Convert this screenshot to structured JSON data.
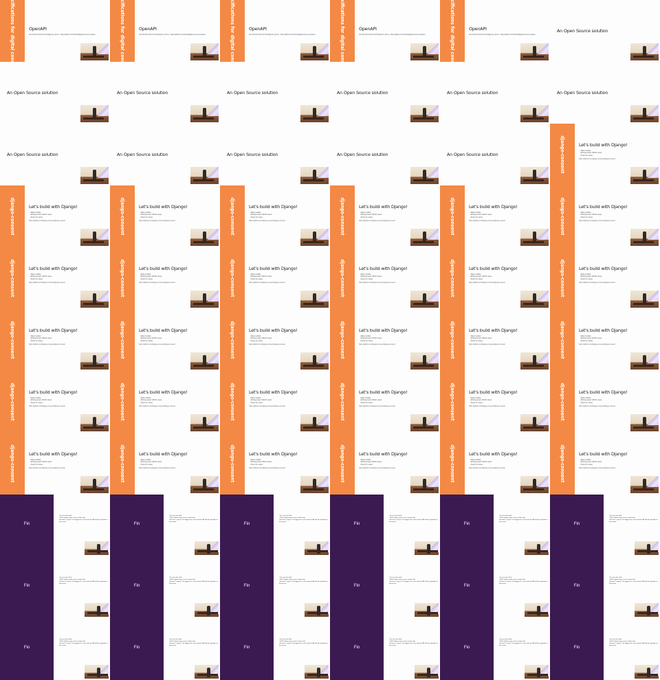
{
  "layout": {
    "columns": 6
  },
  "frames": [
    {
      "type": "openapi",
      "side": "Specifications for digital consent",
      "title": "OpenAPI",
      "subtitle": "Jan Ohnoli's fork/c2.0 (f0 Re@ Ant_90.4) · https://github.com/ohnoli/digital-consent-cultures"
    },
    {
      "type": "openapi",
      "side": "Specifications for digital consent",
      "title": "OpenAPI",
      "subtitle": "Jan Ohnoli's fork/c2.0 (f0 Re@ Ant_90.4) · https://github.com/ohnoli/digital-consent-cultures"
    },
    {
      "type": "openapi",
      "side": "Specifications for digital consent",
      "title": "OpenAPI",
      "subtitle": "Jan Ohnoli's fork/c2.0 (f0 Re@ Ant_90.4) · https://github.com/ohnoli/digital-consent-cultures"
    },
    {
      "type": "openapi",
      "side": "Specifications for digital consent",
      "title": "OpenAPI",
      "subtitle": "Jan Ohnoli's fork/c2.0 (f0 Re@ Ant_90.4) · https://github.com/ohnoli/digital-consent-cultures"
    },
    {
      "type": "openapi",
      "side": "Specifications for digital consent",
      "title": "OpenAPI",
      "subtitle": "Jan Ohnoli's fork/c2.0 (f0 Re@ Ant_90.4) · https://github.com/ohnoli/digital-consent-cultures"
    },
    {
      "type": "plain",
      "title": "An Open Source solution"
    },
    {
      "type": "plain",
      "title": "An Open Source solution"
    },
    {
      "type": "plain",
      "title": "An Open Source solution"
    },
    {
      "type": "plain",
      "title": "An Open Source solution"
    },
    {
      "type": "plain",
      "title": "An Open Source solution"
    },
    {
      "type": "plain",
      "title": "An Open Source solution"
    },
    {
      "type": "plain",
      "title": "An Open Source solution"
    },
    {
      "type": "plain",
      "title": "An Open Source solution"
    },
    {
      "type": "plain",
      "title": "An Open Source solution"
    },
    {
      "type": "plain",
      "title": "An Open Source solution"
    },
    {
      "type": "plain",
      "title": "An Open Source solution"
    },
    {
      "type": "plain",
      "title": "An Open Source solution"
    },
    {
      "type": "django",
      "side": "django-consent",
      "title": "Let's build with Django!",
      "bullets": [
        "Data models",
        "Writing basic CRUD views",
        "Tests for views"
      ],
      "link": "https://github.com/django-consent/django-consent"
    },
    {
      "type": "django",
      "side": "django-consent",
      "title": "Let's build with Django!",
      "bullets": [
        "Data models",
        "Writing basic CRUD views",
        "Tests for views"
      ],
      "link": "https://github.com/django-consent/django-consent"
    },
    {
      "type": "django",
      "side": "django-consent",
      "title": "Let's build with Django!",
      "bullets": [
        "Data models",
        "Writing basic CRUD views",
        "Tests for views"
      ],
      "link": "https://github.com/django-consent/django-consent"
    },
    {
      "type": "django",
      "side": "django-consent",
      "title": "Let's build with Django!",
      "bullets": [
        "Data models",
        "Writing basic CRUD views",
        "Tests for views"
      ],
      "link": "https://github.com/django-consent/django-consent"
    },
    {
      "type": "django",
      "side": "django-consent",
      "title": "Let's build with Django!",
      "bullets": [
        "Data models",
        "Writing basic CRUD views",
        "Tests for views"
      ],
      "link": "https://github.com/django-consent/django-consent"
    },
    {
      "type": "django",
      "side": "django-consent",
      "title": "Let's build with Django!",
      "bullets": [
        "Data models",
        "Writing basic CRUD views",
        "Tests for views"
      ],
      "link": "https://github.com/django-consent/django-consent"
    },
    {
      "type": "django",
      "side": "django-consent",
      "title": "Let's build with Django!",
      "bullets": [
        "Data models",
        "Writing basic CRUD views",
        "Tests for views"
      ],
      "link": "https://github.com/django-consent/django-consent"
    },
    {
      "type": "django",
      "side": "django-consent",
      "title": "Let's build with Django!",
      "bullets": [
        "Data models",
        "Writing basic CRUD views",
        "Tests for views"
      ],
      "link": "https://github.com/django-consent/django-consent"
    },
    {
      "type": "django",
      "side": "django-consent",
      "title": "Let's build with Django!",
      "bullets": [
        "Data models",
        "Writing basic CRUD views",
        "Tests for views"
      ],
      "link": "https://github.com/django-consent/django-consent"
    },
    {
      "type": "django",
      "side": "django-consent",
      "title": "Let's build with Django!",
      "bullets": [
        "Data models",
        "Writing basic CRUD views",
        "Tests for views"
      ],
      "link": "https://github.com/django-consent/django-consent"
    },
    {
      "type": "django",
      "side": "django-consent",
      "title": "Let's build with Django!",
      "bullets": [
        "Data models",
        "Writing basic CRUD views",
        "Tests for views"
      ],
      "link": "https://github.com/django-consent/django-consent"
    },
    {
      "type": "django",
      "side": "django-consent",
      "title": "Let's build with Django!",
      "bullets": [
        "Data models",
        "Writing basic CRUD views",
        "Tests for views"
      ],
      "link": "https://github.com/django-consent/django-consent"
    },
    {
      "type": "django",
      "side": "django-consent",
      "title": "Let's build with Django!",
      "bullets": [
        "Data models",
        "Writing basic CRUD views",
        "Tests for views"
      ],
      "link": "https://github.com/django-consent/django-consent"
    },
    {
      "type": "django",
      "side": "django-consent",
      "title": "Let's build with Django!",
      "bullets": [
        "Data models",
        "Writing basic CRUD views",
        "Tests for views"
      ],
      "link": "https://github.com/django-consent/django-consent"
    },
    {
      "type": "django",
      "side": "django-consent",
      "title": "Let's build with Django!",
      "bullets": [
        "Data models",
        "Writing basic CRUD views",
        "Tests for views"
      ],
      "link": "https://github.com/django-consent/django-consent"
    },
    {
      "type": "django",
      "side": "django-consent",
      "title": "Let's build with Django!",
      "bullets": [
        "Data models",
        "Writing basic CRUD views",
        "Tests for views"
      ],
      "link": "https://github.com/django-consent/django-consent"
    },
    {
      "type": "django",
      "side": "django-consent",
      "title": "Let's build with Django!",
      "bullets": [
        "Data models",
        "Writing basic CRUD views",
        "Tests for views"
      ],
      "link": "https://github.com/django-consent/django-consent"
    },
    {
      "type": "django",
      "side": "django-consent",
      "title": "Let's build with Django!",
      "bullets": [
        "Data models",
        "Writing basic CRUD views",
        "Tests for views"
      ],
      "link": "https://github.com/django-consent/django-consent"
    },
    {
      "type": "django",
      "side": "django-consent",
      "title": "Let's build with Django!",
      "bullets": [
        "Data models",
        "Writing basic CRUD views",
        "Tests for views"
      ],
      "link": "https://github.com/django-consent/django-consent"
    },
    {
      "type": "django",
      "side": "django-consent",
      "title": "Let's build with Django!",
      "bullets": [
        "Data models",
        "Writing basic CRUD views",
        "Tests for views"
      ],
      "link": "https://github.com/django-consent/django-consent"
    },
    {
      "type": "django",
      "side": "django-consent",
      "title": "Let's build with Django!",
      "bullets": [
        "Data models",
        "Writing basic CRUD views",
        "Tests for views"
      ],
      "link": "https://github.com/django-consent/django-consent"
    },
    {
      "type": "django",
      "side": "django-consent",
      "title": "Let's build with Django!",
      "bullets": [
        "Data models",
        "Writing basic CRUD views",
        "Tests for views"
      ],
      "link": "https://github.com/django-consent/django-consent"
    },
    {
      "type": "django",
      "side": "django-consent",
      "title": "Let's build with Django!",
      "bullets": [
        "Data models",
        "Writing basic CRUD views",
        "Tests for views"
      ],
      "link": "https://github.com/django-consent/django-consent"
    },
    {
      "type": "django",
      "side": "django-consent",
      "title": "Let's build with Django!",
      "bullets": [
        "Data models",
        "Writing basic CRUD views",
        "Tests for views"
      ],
      "link": "https://github.com/django-consent/django-consent"
    },
    {
      "type": "django",
      "side": "django-consent",
      "title": "Let's build with Django!",
      "bullets": [
        "Data models",
        "Writing basic CRUD views",
        "Tests for views"
      ],
      "link": "https://github.com/django-consent/django-consent"
    },
    {
      "type": "django",
      "side": "django-consent",
      "title": "Let's build with Django!",
      "bullets": [
        "Data models",
        "Writing basic CRUD views",
        "Tests for views"
      ],
      "link": "https://github.com/django-consent/django-consent"
    },
    {
      "type": "django",
      "side": "django-consent",
      "title": "Let's build with Django!",
      "bullets": [
        "Data models",
        "Writing basic CRUD views",
        "Tests for views"
      ],
      "link": "https://github.com/django-consent/django-consent"
    },
    {
      "type": "django",
      "side": "django-consent",
      "title": "Let's build with Django!",
      "bullets": [
        "Data models",
        "Writing basic CRUD views",
        "Tests for views"
      ],
      "link": "https://github.com/django-consent/django-consent"
    },
    {
      "type": "django",
      "side": "django-consent",
      "title": "Let's build with Django!",
      "bullets": [
        "Data models",
        "Writing basic CRUD views",
        "Tests for views"
      ],
      "link": "https://github.com/django-consent/django-consent"
    },
    {
      "type": "django",
      "side": "django-consent",
      "title": "Let's build with Django!",
      "bullets": [
        "Data models",
        "Writing basic CRUD views",
        "Tests for views"
      ],
      "link": "https://github.com/django-consent/django-consent"
    },
    {
      "type": "django",
      "side": "django-consent",
      "title": "Let's build with Django!",
      "bullets": [
        "Data models",
        "Writing basic CRUD views",
        "Tests for views"
      ],
      "link": "https://github.com/django-consent/django-consent"
    },
    {
      "type": "fin",
      "title": "Fin",
      "bullets": [
        "You can also help!",
        "100% Python open source ready code",
        "No time? I agree? The biggest tie in the internet? All half the algorithm in discussion"
      ]
    },
    {
      "type": "fin",
      "title": "Fin",
      "bullets": [
        "You can also help!",
        "100% Python open source ready code",
        "No time? I agree? The biggest tie in the internet? All half the algorithm in discussion"
      ]
    },
    {
      "type": "fin",
      "title": "Fin",
      "bullets": [
        "You can also help!",
        "100% Python open source ready code",
        "No time? I agree? The biggest tie in the internet? All half the algorithm in discussion"
      ]
    },
    {
      "type": "fin",
      "title": "Fin",
      "bullets": [
        "You can also help!",
        "100% Python open source ready code",
        "No time? I agree? The biggest tie in the internet? All half the algorithm in discussion"
      ]
    },
    {
      "type": "fin",
      "title": "Fin",
      "bullets": [
        "You can also help!",
        "100% Python open source ready code",
        "No time? I agree? The biggest tie in the internet? All half the algorithm in discussion"
      ]
    },
    {
      "type": "fin",
      "title": "Fin",
      "bullets": [
        "You can also help!",
        "100% Python open source ready code",
        "No time? I agree? The biggest tie in the internet? All half the algorithm in discussion"
      ]
    },
    {
      "type": "fin",
      "title": "Fin",
      "bullets": [
        "You can also help!",
        "100% Python open source ready code",
        "No time? I agree? The biggest tie in the internet? All half the algorithm in discussion"
      ]
    },
    {
      "type": "fin",
      "title": "Fin",
      "bullets": [
        "You can also help!",
        "100% Python open source ready code",
        "No time? I agree? The biggest tie in the internet? All half the algorithm in discussion"
      ]
    },
    {
      "type": "fin",
      "title": "Fin",
      "bullets": [
        "You can also help!",
        "100% Python open source ready code",
        "No time? I agree? The biggest tie in the internet? All half the algorithm in discussion"
      ]
    },
    {
      "type": "fin",
      "title": "Fin",
      "bullets": [
        "You can also help!",
        "100% Python open source ready code",
        "No time? I agree? The biggest tie in the internet? All half the algorithm in discussion"
      ]
    },
    {
      "type": "fin",
      "title": "Fin",
      "bullets": [
        "You can also help!",
        "100% Python open source ready code",
        "No time? I agree? The biggest tie in the internet? All half the algorithm in discussion"
      ]
    },
    {
      "type": "fin",
      "title": "Fin",
      "bullets": [
        "You can also help!",
        "100% Python open source ready code",
        "No time? I agree? The biggest tie in the internet? All half the algorithm in discussion"
      ]
    },
    {
      "type": "fin",
      "title": "Fin",
      "bullets": [
        "You can also help!",
        "100% Python open source ready code",
        "No time? I agree? The biggest tie in the internet? All half the algorithm in discussion"
      ]
    },
    {
      "type": "fin",
      "title": "Fin",
      "bullets": [
        "You can also help!",
        "100% Python open source ready code",
        "No time? I agree? The biggest tie in the internet? All half the algorithm in discussion"
      ]
    },
    {
      "type": "fin",
      "title": "Fin",
      "bullets": [
        "You can also help!",
        "100% Python open source ready code",
        "No time? I agree? The biggest tie in the internet? All half the algorithm in discussion"
      ]
    },
    {
      "type": "fin",
      "title": "Fin",
      "bullets": [
        "You can also help!",
        "100% Python open source ready code",
        "No time? I agree? The biggest tie in the internet? All half the algorithm in discussion"
      ]
    },
    {
      "type": "fin",
      "title": "Fin",
      "bullets": [
        "You can also help!",
        "100% Python open source ready code",
        "No time? I agree? The biggest tie in the internet? All half the algorithm in discussion"
      ]
    },
    {
      "type": "fin",
      "title": "Fin",
      "bullets": [
        "You can also help!",
        "100% Python open source ready code",
        "No time? I agree? The biggest tie in the internet? All half the algorithm in discussion"
      ]
    }
  ],
  "colors": {
    "orange": "#f38944",
    "purple": "#3b1a52"
  }
}
